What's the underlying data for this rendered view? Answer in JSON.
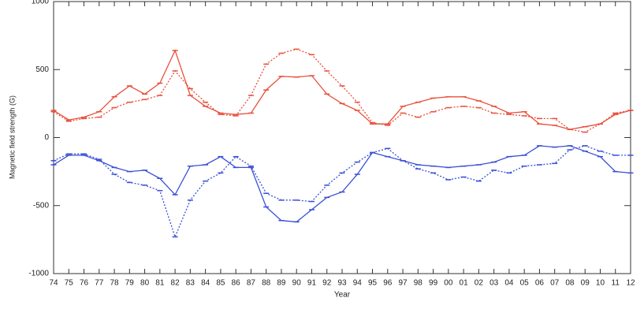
{
  "chart_data": {
    "type": "line",
    "xlabel": "Year",
    "ylabel": "Magnetic field strength (G)",
    "categories": [
      "74",
      "75",
      "76",
      "77",
      "78",
      "79",
      "80",
      "81",
      "82",
      "83",
      "84",
      "85",
      "86",
      "87",
      "88",
      "89",
      "90",
      "91",
      "92",
      "93",
      "94",
      "95",
      "96",
      "97",
      "98",
      "99",
      "00",
      "01",
      "02",
      "03",
      "04",
      "05",
      "06",
      "07",
      "08",
      "09",
      "10",
      "11",
      "12"
    ],
    "series": [
      {
        "color": "#e8503a",
        "dashed": false,
        "values": [
          200,
          130,
          150,
          190,
          300,
          380,
          320,
          400,
          640,
          310,
          230,
          180,
          170,
          180,
          350,
          450,
          445,
          455,
          320,
          250,
          200,
          100,
          100,
          230,
          260,
          290,
          300,
          300,
          270,
          230,
          180,
          190,
          100,
          90,
          60,
          80,
          100,
          170,
          200
        ]
      },
      {
        "color": "#e8503a",
        "dashed": true,
        "values": [
          190,
          120,
          140,
          150,
          220,
          260,
          280,
          310,
          490,
          360,
          260,
          170,
          160,
          310,
          540,
          620,
          650,
          610,
          490,
          380,
          260,
          110,
          90,
          180,
          150,
          190,
          220,
          230,
          220,
          180,
          170,
          160,
          140,
          140,
          60,
          40,
          100,
          180,
          200
        ]
      },
      {
        "color": "#3a4fd6",
        "dashed": false,
        "values": [
          -200,
          -130,
          -130,
          -170,
          -220,
          -250,
          -240,
          -300,
          -420,
          -210,
          -200,
          -140,
          -220,
          -220,
          -510,
          -610,
          -620,
          -530,
          -440,
          -400,
          -270,
          -110,
          -140,
          -170,
          -200,
          -210,
          -220,
          -210,
          -200,
          -180,
          -140,
          -130,
          -60,
          -70,
          -60,
          -100,
          -140,
          -250,
          -260
        ]
      },
      {
        "color": "#3a4fd6",
        "dashed": true,
        "values": [
          -170,
          -120,
          -120,
          -160,
          -270,
          -330,
          -350,
          -390,
          -730,
          -460,
          -320,
          -260,
          -140,
          -210,
          -410,
          -460,
          -460,
          -470,
          -350,
          -260,
          -180,
          -110,
          -80,
          -170,
          -230,
          -260,
          -310,
          -290,
          -320,
          -240,
          -260,
          -210,
          -200,
          -190,
          -90,
          -60,
          -100,
          -130,
          -130
        ]
      }
    ],
    "ylim": [
      -1000,
      1000
    ],
    "yticks": [
      -1000,
      -500,
      0,
      500,
      1000
    ]
  }
}
